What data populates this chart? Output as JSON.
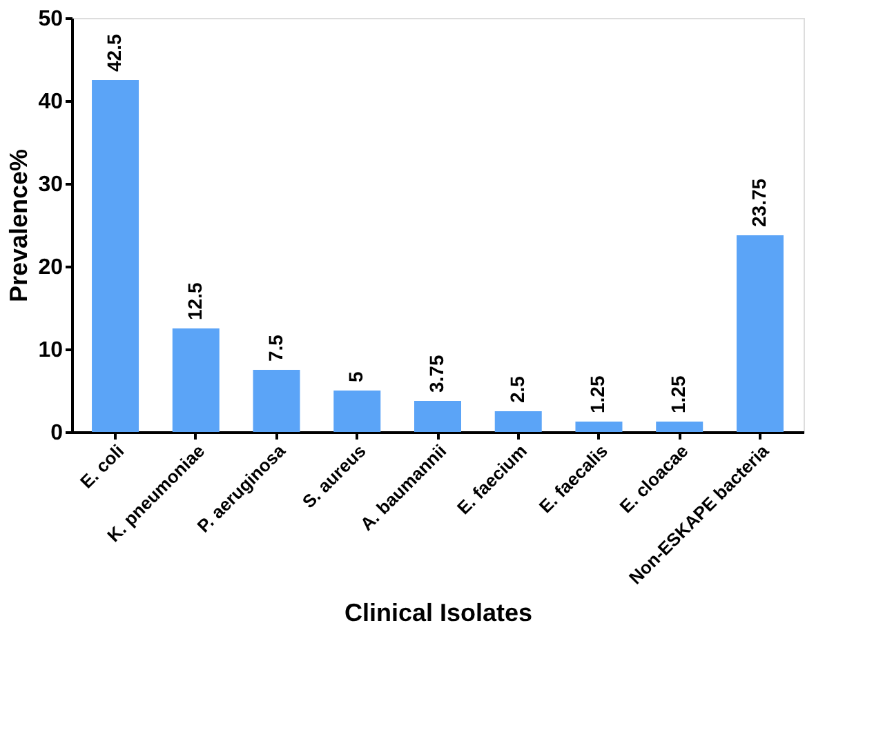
{
  "chart_data": {
    "type": "bar",
    "xlabel": "Clinical Isolates",
    "ylabel": "Prevalence%",
    "categories": [
      "E. coli",
      "K. pneumoniae",
      "P. aeruginosa",
      "S. aureus",
      "A. baumannii",
      "E. faecium",
      "E. faecalis",
      "E. cloacae",
      "Non-ESKAPE bacteria"
    ],
    "values": [
      42.5,
      12.5,
      7.5,
      5,
      3.75,
      2.5,
      1.25,
      1.25,
      23.75
    ],
    "color": "#5ba4f7",
    "ylim": [
      0,
      50
    ],
    "yticks": [
      0,
      10,
      20,
      30,
      40,
      50
    ],
    "grid": false,
    "data_labels": true
  }
}
